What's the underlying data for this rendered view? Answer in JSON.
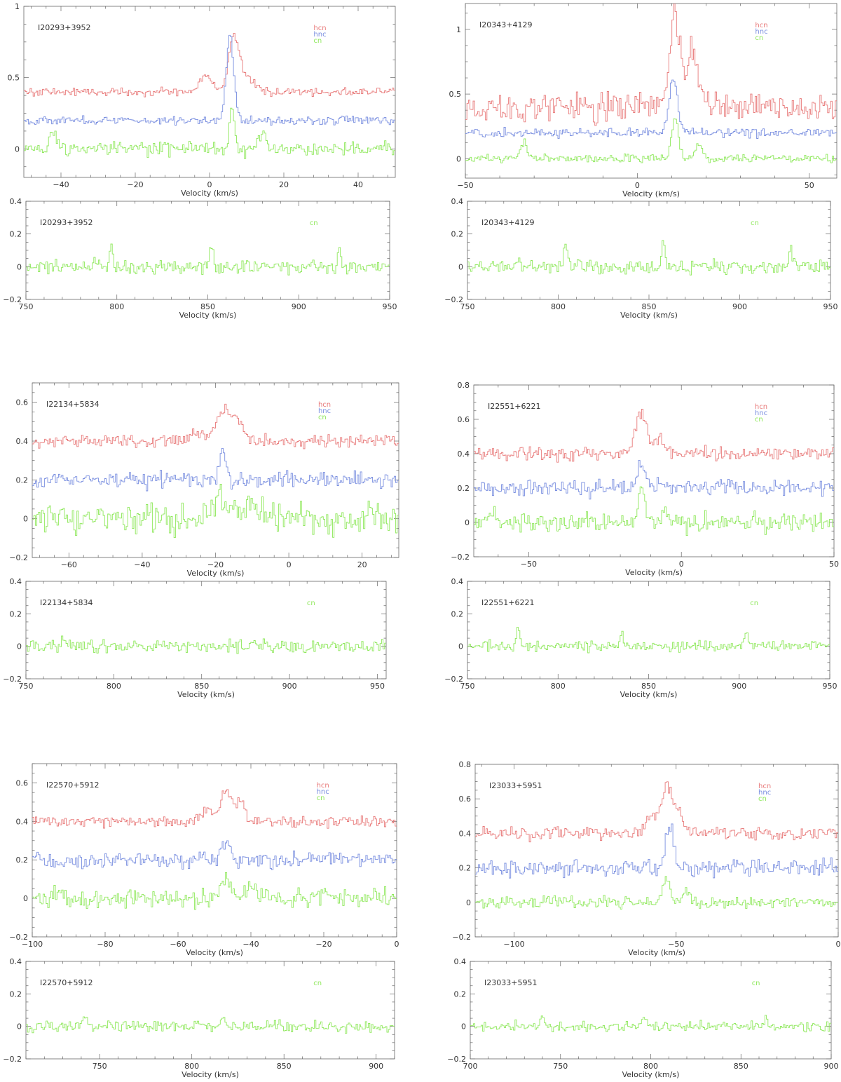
{
  "colors": {
    "hcn": "#e87a7a",
    "hnc": "#7a8fe0",
    "cn": "#8fe85c",
    "axis": "#666666"
  },
  "chart_data": [
    {
      "type": "line",
      "source": "I20293+3952",
      "xlabel": "Velocity (km/s)",
      "xlim": [
        -50,
        50
      ],
      "ylim": [
        -0.2,
        1.0
      ],
      "xticks": [
        -40,
        -20,
        0,
        20,
        40
      ],
      "yticks": [
        0,
        0.5,
        1
      ],
      "ytick_labels": [
        "0",
        "0.5",
        "1"
      ],
      "legend": [
        "hcn",
        "hnc",
        "cn"
      ],
      "legend_position": "top-right",
      "series": [
        {
          "name": "hcn",
          "baseline": 0.4,
          "noise": 0.018,
          "peaks": [
            [
              -1,
              0.12,
              1.5
            ],
            [
              6.5,
              0.38,
              1.4
            ],
            [
              10,
              0.1,
              2.0
            ]
          ]
        },
        {
          "name": "hnc",
          "baseline": 0.2,
          "noise": 0.018,
          "peaks": [
            [
              5.5,
              0.6,
              1.0
            ]
          ]
        },
        {
          "name": "cn",
          "baseline": 0.0,
          "noise": 0.03,
          "peaks": [
            [
              -42,
              0.1,
              1.2
            ],
            [
              6,
              0.25,
              0.7
            ],
            [
              14,
              0.12,
              1.0
            ]
          ]
        }
      ]
    },
    {
      "type": "line",
      "source": "I20343+4129",
      "xlabel": "Velocity (km/s)",
      "xlim": [
        -50,
        58
      ],
      "ylim": [
        -0.15,
        1.2
      ],
      "xticks": [
        -50,
        0,
        50
      ],
      "yticks": [
        0,
        0.5,
        1
      ],
      "ytick_labels": [
        "0",
        "0.5",
        "1"
      ],
      "legend": [
        "hcn",
        "hnc",
        "cn"
      ],
      "legend_position": "top-right",
      "series": [
        {
          "name": "hcn",
          "baseline": 0.4,
          "noise": 0.07,
          "peaks": [
            [
              11,
              0.7,
              1.5
            ],
            [
              16,
              0.45,
              1.5
            ]
          ]
        },
        {
          "name": "hnc",
          "baseline": 0.2,
          "noise": 0.02,
          "peaks": [
            [
              10.5,
              0.42,
              1.2
            ]
          ]
        },
        {
          "name": "cn",
          "baseline": 0.0,
          "noise": 0.02,
          "peaks": [
            [
              -33,
              0.12,
              1.0
            ],
            [
              11,
              0.32,
              1.0
            ],
            [
              18,
              0.12,
              1.0
            ]
          ]
        }
      ]
    },
    {
      "type": "line",
      "source": "I20293+3952",
      "xlabel": "Velocity (km/s)",
      "xlim": [
        750,
        950
      ],
      "ylim": [
        -0.2,
        0.4
      ],
      "xticks": [
        750,
        800,
        850,
        900,
        950
      ],
      "yticks": [
        -0.2,
        0,
        0.2,
        0.4
      ],
      "ytick_labels": [
        "−0.2",
        "0",
        "0.2",
        "0.4"
      ],
      "legend": [
        "cn"
      ],
      "legend_position": "top-right",
      "series": [
        {
          "name": "cn",
          "baseline": 0.0,
          "noise": 0.025,
          "peaks": [
            [
              797,
              0.13,
              0.9
            ],
            [
              852,
              0.13,
              0.9
            ],
            [
              922,
              0.12,
              0.9
            ]
          ]
        }
      ]
    },
    {
      "type": "line",
      "source": "I20343+4129",
      "xlabel": "Velocity (km/s)",
      "xlim": [
        750,
        950
      ],
      "ylim": [
        -0.2,
        0.4
      ],
      "xticks": [
        750,
        800,
        850,
        900,
        950
      ],
      "yticks": [
        -0.2,
        0,
        0.2,
        0.4
      ],
      "ytick_labels": [
        "−0.2",
        "0",
        "0.2",
        "0.4"
      ],
      "legend": [
        "cn"
      ],
      "legend_position": "top-right",
      "series": [
        {
          "name": "cn",
          "baseline": 0.0,
          "noise": 0.025,
          "peaks": [
            [
              804,
              0.17,
              0.9
            ],
            [
              858,
              0.15,
              0.9
            ],
            [
              928,
              0.12,
              0.9
            ]
          ]
        }
      ]
    },
    {
      "type": "line",
      "source": "I22134+5834",
      "xlabel": "Velocity (km/s)",
      "xlim": [
        -70,
        30
      ],
      "ylim": [
        -0.2,
        0.7
      ],
      "xticks": [
        -60,
        -40,
        -20,
        0,
        20
      ],
      "yticks": [
        -0.2,
        0,
        0.2,
        0.4,
        0.6
      ],
      "ytick_labels": [
        "−0.2",
        "0",
        "0.2",
        "0.4",
        "0.6"
      ],
      "legend": [
        "hcn",
        "hnc",
        "cn"
      ],
      "legend_position": "top-right",
      "series": [
        {
          "name": "hcn",
          "baseline": 0.4,
          "noise": 0.02,
          "peaks": [
            [
              -25,
              0.05,
              1.5
            ],
            [
              -18,
              0.16,
              1.8
            ],
            [
              -14,
              0.1,
              1.5
            ]
          ]
        },
        {
          "name": "hnc",
          "baseline": 0.2,
          "noise": 0.025,
          "peaks": [
            [
              -18,
              0.17,
              0.8
            ]
          ]
        },
        {
          "name": "cn",
          "baseline": 0.0,
          "noise": 0.045,
          "peaks": [
            [
              -19,
              0.1,
              2.0
            ],
            [
              -10,
              0.06,
              3.0
            ]
          ]
        }
      ]
    },
    {
      "type": "line",
      "source": "I22551+6221",
      "xlabel": "Velocity (km/s)",
      "xlim": [
        -68,
        50
      ],
      "ylim": [
        -0.2,
        0.8
      ],
      "xticks": [
        -50,
        0,
        50
      ],
      "yticks": [
        -0.2,
        0,
        0.2,
        0.4,
        0.6,
        0.8
      ],
      "ytick_labels": [
        "−0.2",
        "0",
        "0.2",
        "0.4",
        "0.6",
        "0.8"
      ],
      "legend": [
        "hcn",
        "hnc",
        "cn"
      ],
      "legend_position": "top-right",
      "series": [
        {
          "name": "hcn",
          "baseline": 0.4,
          "noise": 0.025,
          "peaks": [
            [
              -13,
              0.24,
              1.8
            ],
            [
              -7,
              0.1,
              1.2
            ]
          ]
        },
        {
          "name": "hnc",
          "baseline": 0.2,
          "noise": 0.03,
          "peaks": [
            [
              -13,
              0.14,
              1.2
            ]
          ]
        },
        {
          "name": "cn",
          "baseline": 0.0,
          "noise": 0.035,
          "peaks": [
            [
              -13,
              0.2,
              1.0
            ],
            [
              -5,
              0.08,
              1.0
            ],
            [
              -62,
              0.07,
              1.5
            ]
          ]
        }
      ]
    },
    {
      "type": "line",
      "source": "I22134+5834",
      "xlabel": "Velocity (km/s)",
      "xlim": [
        750,
        955
      ],
      "ylim": [
        -0.2,
        0.4
      ],
      "xticks": [
        750,
        800,
        850,
        900,
        950
      ],
      "yticks": [
        -0.2,
        0,
        0.2,
        0.4
      ],
      "ytick_labels": [
        "−0.2",
        "0",
        "0.2",
        "0.4"
      ],
      "legend": [
        "cn"
      ],
      "legend_position": "top-right",
      "series": [
        {
          "name": "cn",
          "baseline": 0.0,
          "noise": 0.025,
          "peaks": [
            [
              771,
              0.06,
              1.0
            ]
          ]
        }
      ]
    },
    {
      "type": "line",
      "source": "I22551+6221",
      "xlabel": "Velocity (km/s)",
      "xlim": [
        750,
        950
      ],
      "ylim": [
        -0.2,
        0.4
      ],
      "xticks": [
        750,
        800,
        850,
        900,
        950
      ],
      "yticks": [
        -0.2,
        0,
        0.2,
        0.4
      ],
      "ytick_labels": [
        "−0.2",
        "0",
        "0.2",
        "0.4"
      ],
      "legend": [
        "cn"
      ],
      "legend_position": "top-right",
      "series": [
        {
          "name": "cn",
          "baseline": 0.0,
          "noise": 0.02,
          "peaks": [
            [
              778,
              0.1,
              0.9
            ],
            [
              835,
              0.08,
              0.9
            ],
            [
              904,
              0.08,
              1.0
            ]
          ]
        }
      ]
    },
    {
      "type": "line",
      "source": "I22570+5912",
      "xlabel": "Velocity (km/s)",
      "xlim": [
        -100,
        0
      ],
      "ylim": [
        -0.2,
        0.7
      ],
      "xticks": [
        -100,
        -80,
        -60,
        -40,
        -20,
        0
      ],
      "yticks": [
        -0.2,
        0,
        0.2,
        0.4,
        0.6
      ],
      "ytick_labels": [
        "−0.2",
        "0",
        "0.2",
        "0.4",
        "0.6"
      ],
      "legend": [
        "hcn",
        "hnc",
        "cn"
      ],
      "legend_position": "top-right",
      "series": [
        {
          "name": "hcn",
          "baseline": 0.4,
          "noise": 0.018,
          "peaks": [
            [
              -52,
              0.06,
              1.5
            ],
            [
              -47,
              0.15,
              1.5
            ],
            [
              -43,
              0.1,
              1.5
            ]
          ]
        },
        {
          "name": "hnc",
          "baseline": 0.2,
          "noise": 0.025,
          "peaks": [
            [
              -47,
              0.1,
              1.2
            ]
          ]
        },
        {
          "name": "cn",
          "baseline": 0.0,
          "noise": 0.03,
          "peaks": [
            [
              -47,
              0.12,
              1.2
            ],
            [
              -40,
              0.06,
              1.2
            ],
            [
              -93,
              0.05,
              1.0
            ]
          ]
        }
      ]
    },
    {
      "type": "line",
      "source": "I23033+5951",
      "xlabel": "Velocity (km/s)",
      "xlim": [
        -112,
        0
      ],
      "ylim": [
        -0.2,
        0.8
      ],
      "xticks": [
        -100,
        -50,
        0
      ],
      "yticks": [
        -0.2,
        0,
        0.2,
        0.4,
        0.6,
        0.8
      ],
      "ytick_labels": [
        "−0.2",
        "0",
        "0.2",
        "0.4",
        "0.6",
        "0.8"
      ],
      "legend": [
        "hcn",
        "hnc",
        "cn"
      ],
      "legend_position": "top-right",
      "series": [
        {
          "name": "hcn",
          "baseline": 0.4,
          "noise": 0.025,
          "peaks": [
            [
              -58,
              0.1,
              1.5
            ],
            [
              -53,
              0.28,
              1.8
            ],
            [
              -49,
              0.12,
              1.5
            ]
          ]
        },
        {
          "name": "hnc",
          "baseline": 0.2,
          "noise": 0.03,
          "peaks": [
            [
              -52,
              0.25,
              1.2
            ]
          ]
        },
        {
          "name": "cn",
          "baseline": 0.0,
          "noise": 0.02,
          "peaks": [
            [
              -53,
              0.14,
              1.2
            ],
            [
              -47,
              0.05,
              1.2
            ]
          ]
        }
      ]
    },
    {
      "type": "line",
      "source": "I22570+5912",
      "xlabel": "Velocity (km/s)",
      "xlim": [
        710,
        910
      ],
      "ylim": [
        -0.2,
        0.4
      ],
      "xticks": [
        750,
        800,
        850,
        900
      ],
      "yticks": [
        -0.2,
        0,
        0.2,
        0.4
      ],
      "ytick_labels": [
        "−0.2",
        "0",
        "0.2",
        "0.4"
      ],
      "legend": [
        "cn"
      ],
      "legend_position": "top-right",
      "series": [
        {
          "name": "cn",
          "baseline": 0.0,
          "noise": 0.022,
          "peaks": [
            [
              742,
              0.04,
              1.5
            ],
            [
              818,
              0.04,
              1.5
            ]
          ]
        }
      ]
    },
    {
      "type": "line",
      "source": "I23033+5951",
      "xlabel": "Velocity (km/s)",
      "xlim": [
        700,
        900
      ],
      "ylim": [
        -0.2,
        0.4
      ],
      "xticks": [
        700,
        750,
        800,
        850,
        900
      ],
      "yticks": [
        -0.2,
        0,
        0.2,
        0.4
      ],
      "ytick_labels": [
        "−0.2",
        "0",
        "0.2",
        "0.4"
      ],
      "legend": [
        "cn"
      ],
      "legend_position": "top-right",
      "series": [
        {
          "name": "cn",
          "baseline": 0.0,
          "noise": 0.02,
          "peaks": [
            [
              740,
              0.05,
              1.5
            ],
            [
              797,
              0.05,
              1.5
            ],
            [
              864,
              0.08,
              0.8
            ]
          ]
        }
      ]
    }
  ]
}
